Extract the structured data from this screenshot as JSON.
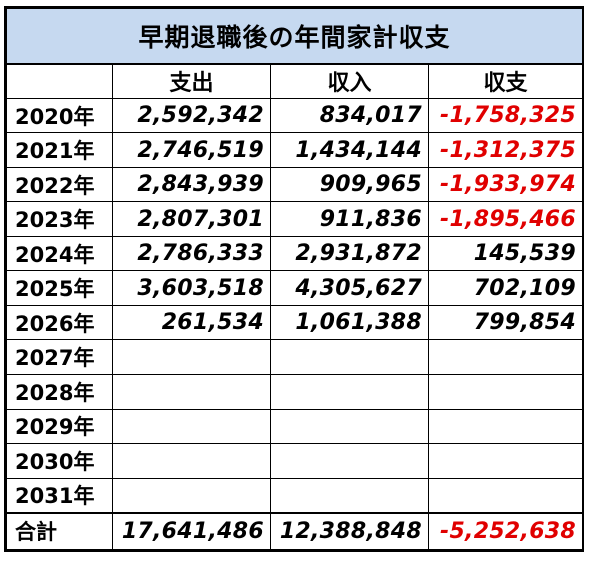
{
  "title": "早期退職後の年間家計収支",
  "headers": [
    "",
    "支出",
    "収入",
    "収支"
  ],
  "rows": [
    {
      "year": "2020年",
      "expense": "2,592,342",
      "income": "834,017",
      "balance": "-1,758,325",
      "negative": true
    },
    {
      "year": "2021年",
      "expense": "2,746,519",
      "income": "1,434,144",
      "balance": "-1,312,375",
      "negative": true
    },
    {
      "year": "2022年",
      "expense": "2,843,939",
      "income": "909,965",
      "balance": "-1,933,974",
      "negative": true
    },
    {
      "year": "2023年",
      "expense": "2,807,301",
      "income": "911,836",
      "balance": "-1,895,466",
      "negative": true
    },
    {
      "year": "2024年",
      "expense": "2,786,333",
      "income": "2,931,872",
      "balance": "145,539",
      "negative": false
    },
    {
      "year": "2025年",
      "expense": "3,603,518",
      "income": "4,305,627",
      "balance": "702,109",
      "negative": false
    },
    {
      "year": "2026年",
      "expense": "261,534",
      "income": "1,061,388",
      "balance": "799,854",
      "negative": false
    },
    {
      "year": "2027年",
      "expense": "",
      "income": "",
      "balance": "",
      "negative": false
    },
    {
      "year": "2028年",
      "expense": "",
      "income": "",
      "balance": "",
      "negative": false
    },
    {
      "year": "2029年",
      "expense": "",
      "income": "",
      "balance": "",
      "negative": false
    },
    {
      "year": "2030年",
      "expense": "",
      "income": "",
      "balance": "",
      "negative": false
    },
    {
      "year": "2031年",
      "expense": "",
      "income": "",
      "balance": "",
      "negative": false
    }
  ],
  "total": {
    "label": "合計",
    "expense": "17,641,486",
    "income": "12,388,848",
    "balance": "-5,252,638",
    "negative": true
  },
  "colors": {
    "title_bg": "#c6d9f0",
    "negative": "#e00000"
  }
}
